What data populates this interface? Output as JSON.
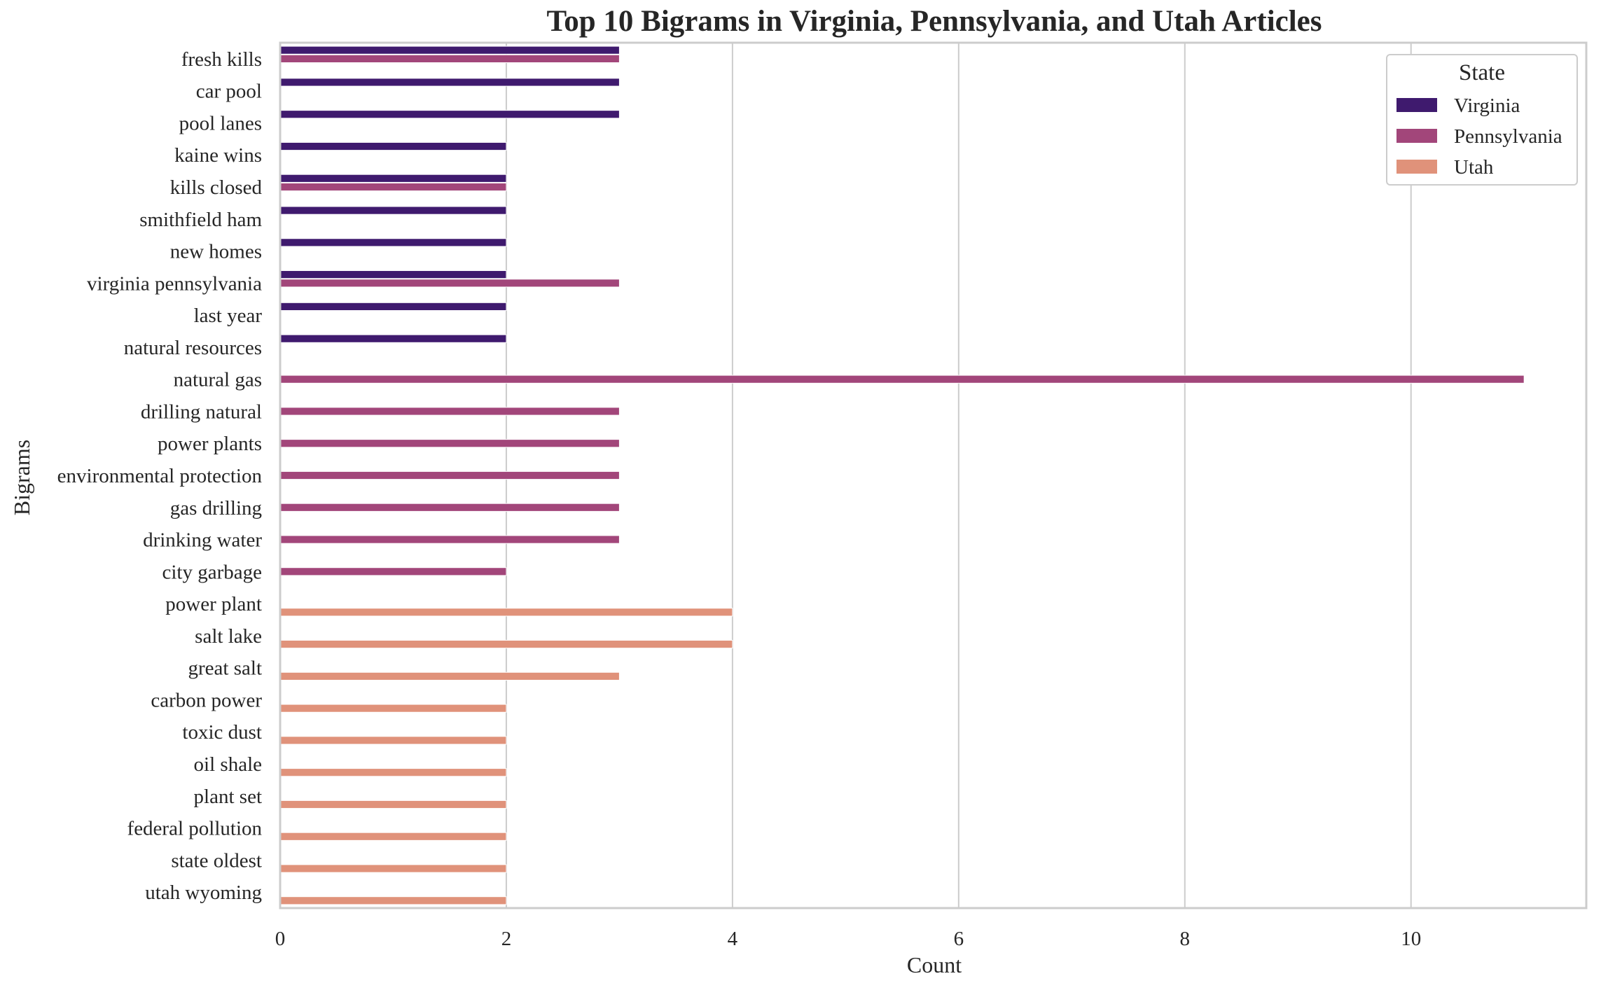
{
  "chart_data": {
    "type": "bar",
    "orientation": "horizontal",
    "title": "Top 10 Bigrams in Virginia, Pennsylvania, and Utah Articles",
    "xlabel": "Count",
    "ylabel": "Bigrams",
    "xlim": [
      0,
      11.55
    ],
    "xticks": [
      0,
      2,
      4,
      6,
      8,
      10
    ],
    "grid": "vertical",
    "legend": {
      "title": "State",
      "placement": "top-right"
    },
    "categories": [
      "fresh kills",
      "car pool",
      "pool lanes",
      "kaine wins",
      "kills closed",
      "smithfield ham",
      "new homes",
      "virginia pennsylvania",
      "last year",
      "natural resources",
      "natural gas",
      "drilling natural",
      "power plants",
      "environmental protection",
      "gas drilling",
      "drinking water",
      "city garbage",
      "power plant",
      "salt lake",
      "great salt",
      "carbon power",
      "toxic dust",
      "oil shale",
      "plant set",
      "federal pollution",
      "state oldest",
      "utah wyoming"
    ],
    "series": [
      {
        "name": "Virginia",
        "color": "#3f1a6e",
        "values": [
          3,
          3,
          3,
          2,
          2,
          2,
          2,
          2,
          2,
          2,
          null,
          null,
          null,
          null,
          null,
          null,
          null,
          null,
          null,
          null,
          null,
          null,
          null,
          null,
          null,
          null,
          null
        ]
      },
      {
        "name": "Pennsylvania",
        "color": "#a2467a",
        "values": [
          3,
          null,
          null,
          null,
          2,
          null,
          null,
          3,
          null,
          null,
          11,
          3,
          3,
          3,
          3,
          3,
          2,
          null,
          null,
          null,
          null,
          null,
          null,
          null,
          null,
          null,
          null
        ]
      },
      {
        "name": "Utah",
        "color": "#e0927a",
        "values": [
          null,
          null,
          null,
          null,
          null,
          null,
          null,
          null,
          null,
          null,
          null,
          null,
          null,
          null,
          null,
          null,
          null,
          4,
          4,
          3,
          2,
          2,
          2,
          2,
          2,
          2,
          2
        ]
      }
    ]
  }
}
